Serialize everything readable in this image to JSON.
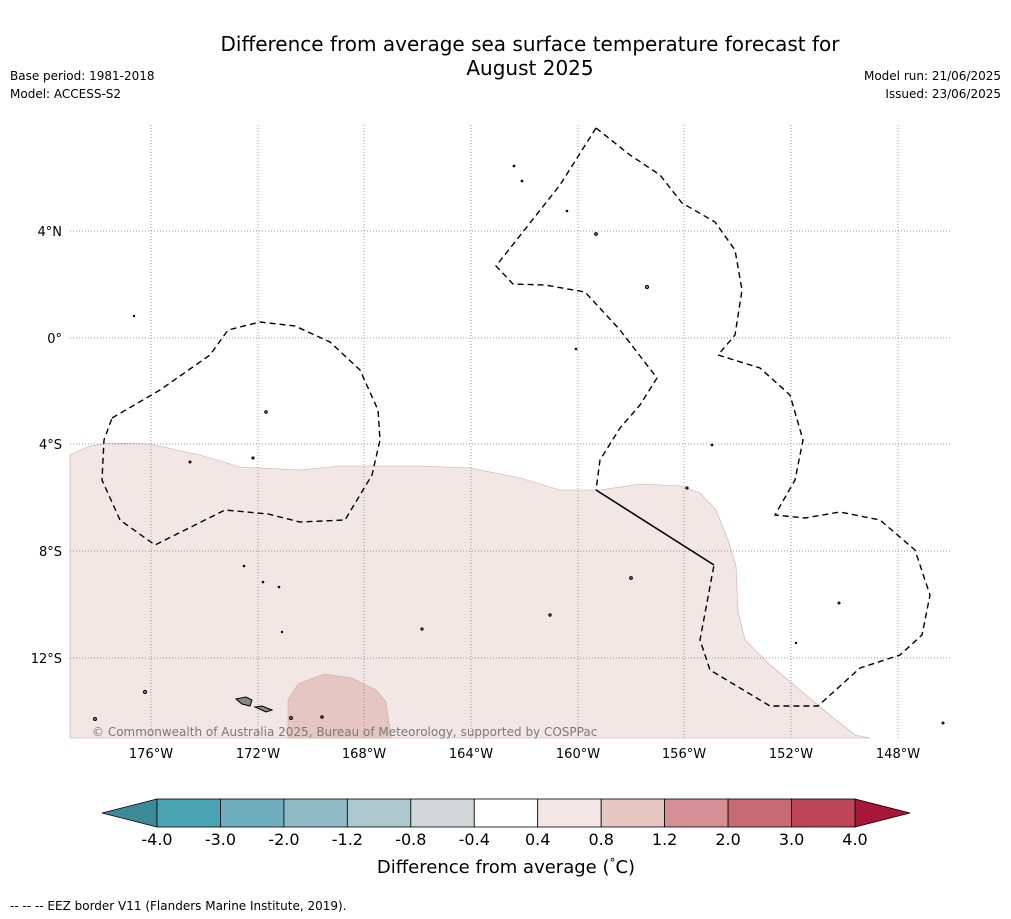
{
  "title_line1": "Difference from average sea surface temperature forecast for",
  "title_line2": "August 2025",
  "meta_left": {
    "base_period": "Base period: 1981-2018",
    "model": "Model: ACCESS-S2"
  },
  "meta_right": {
    "model_run": "Model run: 21/06/2025",
    "issued": "Issued: 23/06/2025"
  },
  "map": {
    "lat_labels": [
      "4°N",
      "0°",
      "4°S",
      "8°S",
      "12°S"
    ],
    "lon_labels": [
      "176°W",
      "172°W",
      "168°W",
      "164°W",
      "160°W",
      "156°W",
      "152°W",
      "148°W"
    ],
    "copyright": "© Commonwealth of Australia 2025, Bureau of Meteorology, supported by COSPPac",
    "colors": {
      "anomaly_0.4_0.8": "#f3e7e6",
      "anomaly_0.8_1.2": "#e6c6c2",
      "eez_border": "#000000",
      "gridline": "#777777"
    }
  },
  "colorbar": {
    "ticks": [
      "-4.0",
      "-3.0",
      "-2.0",
      "-1.2",
      "-0.8",
      "-0.4",
      "0.4",
      "0.8",
      "1.2",
      "2.0",
      "3.0",
      "4.0"
    ],
    "colors": [
      "#4aa4b4",
      "#6eaebe",
      "#8fbac6",
      "#acc9cf",
      "#d2d8da",
      "#ffffff",
      "#f3e6e5",
      "#e6c6c1",
      "#d68f94",
      "#c86a74",
      "#be4658"
    ],
    "under_color": "#3a8a98",
    "over_color": "#a8163a",
    "label": "Difference from average (",
    "label_unit": "°",
    "label_end": "C)"
  },
  "footnote": "--  --  -- EEZ border V11 (Flanders Marine Institute, 2019)."
}
